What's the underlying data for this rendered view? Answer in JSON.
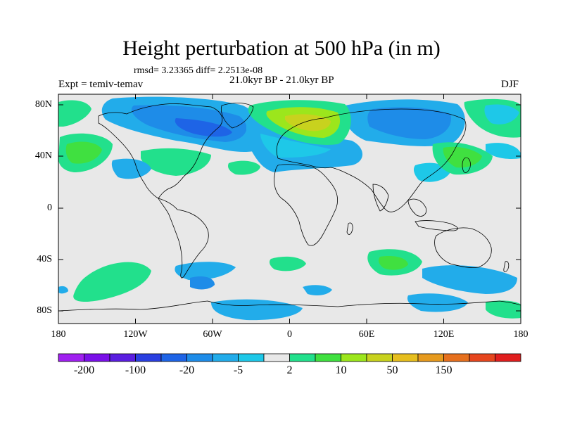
{
  "title": "Height perturbation at 500 hPa (in m)",
  "stats": "rmsd= 3.23365 diff= 2.2513e-08",
  "expt": "Expt = temiv-temav",
  "subtitle": "21.0kyr BP - 21.0kyr BP",
  "season": "DJF",
  "lat_labels": [
    "80N",
    "40N",
    "0",
    "40S",
    "80S"
  ],
  "lon_labels": [
    "180",
    "120W",
    "60W",
    "0",
    "60E",
    "120E",
    "180"
  ],
  "colorbar": {
    "colors": [
      "#a020f0",
      "#7a10e8",
      "#5a1ee0",
      "#2a3fe0",
      "#1e64e6",
      "#1e8ce8",
      "#22acea",
      "#1ec8e8",
      "#e8e8e8",
      "#22e08c",
      "#40e040",
      "#9ce61c",
      "#c8d21e",
      "#e6be1e",
      "#e69a1e",
      "#e6701e",
      "#e6461e",
      "#e01e1e"
    ],
    "labels": [
      "-200",
      "-100",
      "-20",
      "-5",
      "2",
      "10",
      "50",
      "150"
    ]
  }
}
